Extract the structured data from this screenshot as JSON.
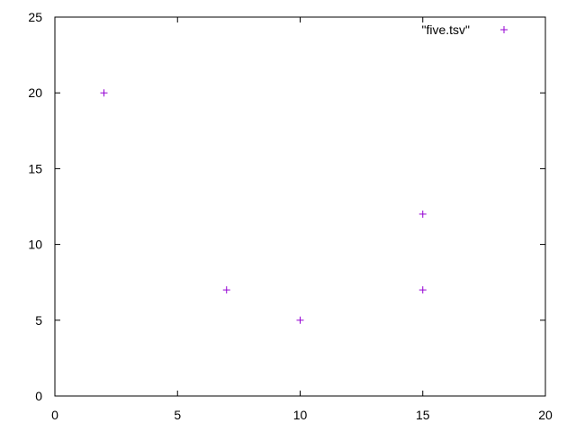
{
  "chart_data": {
    "type": "scatter",
    "title": "",
    "xlabel": "",
    "ylabel": "",
    "xlim": [
      0,
      20
    ],
    "ylim": [
      0,
      25
    ],
    "xticks": [
      0,
      5,
      10,
      15,
      20
    ],
    "yticks": [
      0,
      5,
      10,
      15,
      20,
      25
    ],
    "grid": false,
    "legend_position": "top-right",
    "series": [
      {
        "name": "\"five.tsv\"",
        "marker": "+",
        "color": "#9400d3",
        "points": [
          {
            "x": 2,
            "y": 20
          },
          {
            "x": 7,
            "y": 7
          },
          {
            "x": 10,
            "y": 5
          },
          {
            "x": 15,
            "y": 7
          },
          {
            "x": 15,
            "y": 12
          }
        ]
      }
    ]
  }
}
